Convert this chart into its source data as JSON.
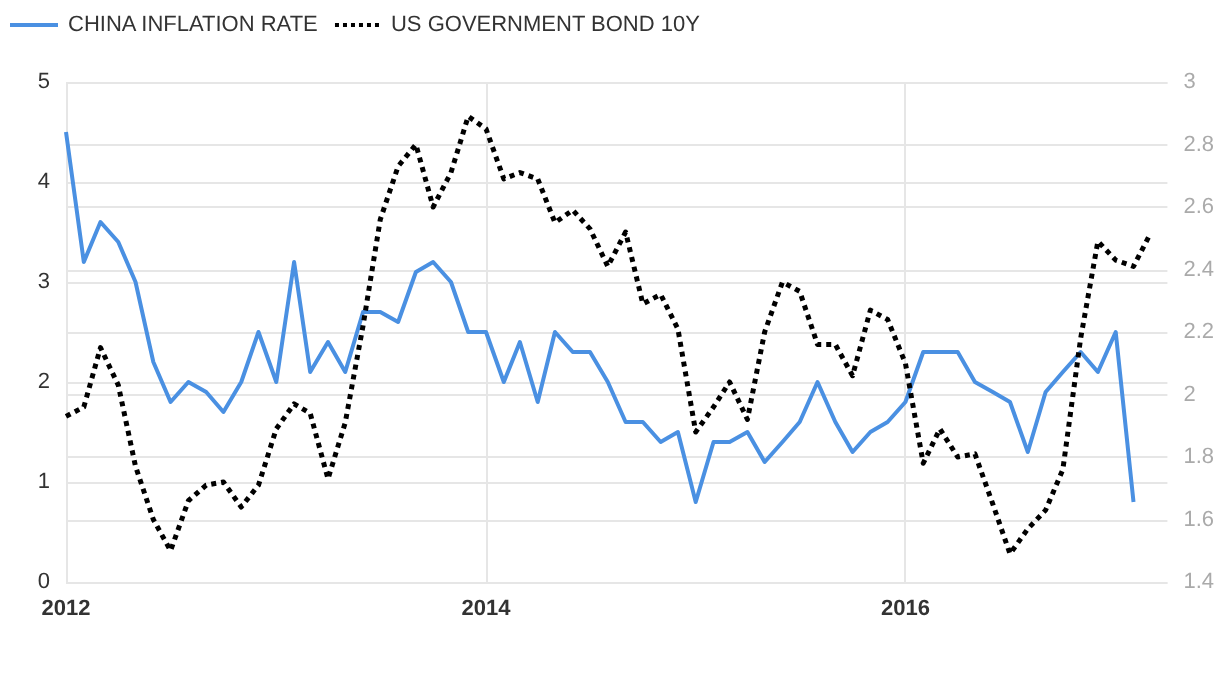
{
  "chart_data": {
    "type": "line",
    "x": [
      "2012-01",
      "2012-02",
      "2012-03",
      "2012-04",
      "2012-05",
      "2012-06",
      "2012-07",
      "2012-08",
      "2012-09",
      "2012-10",
      "2012-11",
      "2012-12",
      "2013-01",
      "2013-02",
      "2013-03",
      "2013-04",
      "2013-05",
      "2013-06",
      "2013-07",
      "2013-08",
      "2013-09",
      "2013-10",
      "2013-11",
      "2013-12",
      "2014-01",
      "2014-02",
      "2014-03",
      "2014-04",
      "2014-05",
      "2014-06",
      "2014-07",
      "2014-08",
      "2014-09",
      "2014-10",
      "2014-11",
      "2014-12",
      "2015-01",
      "2015-02",
      "2015-03",
      "2015-04",
      "2015-05",
      "2015-06",
      "2015-07",
      "2015-08",
      "2015-09",
      "2015-10",
      "2015-11",
      "2015-12",
      "2016-01",
      "2016-02",
      "2016-03",
      "2016-04",
      "2016-05",
      "2016-06",
      "2016-07",
      "2016-08",
      "2016-09",
      "2016-10",
      "2016-11",
      "2016-12",
      "2017-01",
      "2017-02",
      "2017-03"
    ],
    "series": [
      {
        "name": "CHINA INFLATION RATE",
        "color": "#4a90e2",
        "line_style": "solid",
        "values": [
          4.5,
          3.2,
          3.6,
          3.4,
          3.0,
          2.2,
          1.8,
          2.0,
          1.9,
          1.7,
          2.0,
          2.5,
          2.0,
          3.2,
          2.1,
          2.4,
          2.1,
          2.7,
          2.7,
          2.6,
          3.1,
          3.2,
          3.0,
          2.5,
          2.5,
          2.0,
          2.4,
          1.8,
          2.5,
          2.3,
          2.3,
          2.0,
          1.6,
          1.6,
          1.4,
          1.5,
          0.8,
          1.4,
          1.4,
          1.5,
          1.2,
          1.4,
          1.6,
          2.0,
          1.6,
          1.3,
          1.5,
          1.6,
          1.8,
          2.3,
          2.3,
          2.3,
          2.0,
          1.9,
          1.8,
          1.3,
          1.9,
          2.1,
          2.3,
          2.1,
          2.5,
          0.8,
          null
        ]
      },
      {
        "name": "US GOVERNMENT BOND 10Y",
        "color": "#000000",
        "line_style": "dotted",
        "axis": "y2",
        "values": [
          1.93,
          1.96,
          2.15,
          2.03,
          1.77,
          1.6,
          1.5,
          1.66,
          1.71,
          1.72,
          1.64,
          1.71,
          1.89,
          1.97,
          1.94,
          1.73,
          1.91,
          2.22,
          2.56,
          2.73,
          2.8,
          2.6,
          2.71,
          2.89,
          2.85,
          2.69,
          2.71,
          2.69,
          2.55,
          2.59,
          2.53,
          2.41,
          2.52,
          2.29,
          2.32,
          2.21,
          1.88,
          1.96,
          2.04,
          1.92,
          2.2,
          2.36,
          2.33,
          2.16,
          2.16,
          2.06,
          2.27,
          2.24,
          2.1,
          1.78,
          1.89,
          1.8,
          1.81,
          1.65,
          1.49,
          1.57,
          1.63,
          1.76,
          2.18,
          2.49,
          2.43,
          2.41,
          2.51
        ]
      }
    ],
    "xlim": [
      "2012-01",
      "2017-04"
    ],
    "xticks": [
      {
        "value": "2012-01",
        "label": "2012"
      },
      {
        "value": "2014-01",
        "label": "2014"
      },
      {
        "value": "2016-01",
        "label": "2016"
      }
    ],
    "ylim": [
      0,
      5
    ],
    "yticks": [
      0,
      1,
      2,
      3,
      4,
      5
    ],
    "y2lim": [
      1.4,
      3
    ],
    "y2ticks": [
      1.4,
      1.6,
      1.8,
      2,
      2.2,
      2.4,
      2.6,
      2.8,
      3
    ],
    "grid": true,
    "legend": "top left",
    "marker": "none"
  }
}
